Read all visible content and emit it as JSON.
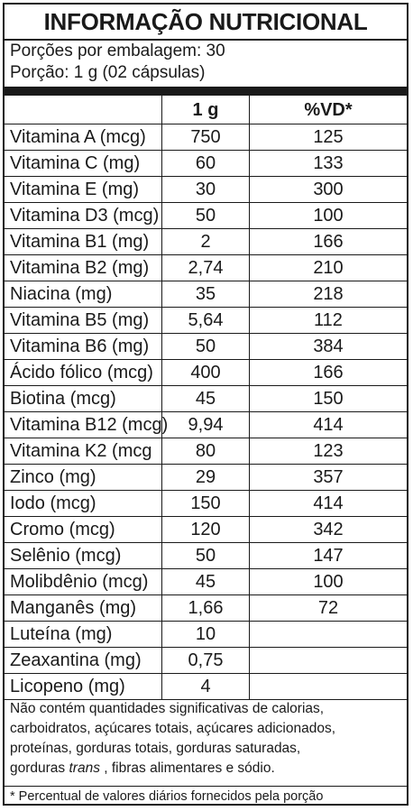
{
  "title": "INFORMAÇÃO NUTRICIONAL",
  "servings_per_package": "Porções por embalagem: 30",
  "serving_size": "Porção: 1 g (02 cápsulas)",
  "headers": {
    "quantity": "1 g",
    "vd": "%VD*"
  },
  "rows": [
    {
      "name": "Vitamina A (mcg)",
      "qty": "750",
      "vd": "125"
    },
    {
      "name": "Vitamina C (mg)",
      "qty": "60",
      "vd": "133"
    },
    {
      "name": "Vitamina E (mg)",
      "qty": "30",
      "vd": "300"
    },
    {
      "name": "Vitamina D3 (mcg)",
      "qty": "50",
      "vd": "100"
    },
    {
      "name": "Vitamina B1 (mg)",
      "qty": "2",
      "vd": "166"
    },
    {
      "name": "Vitamina B2 (mg)",
      "qty": "2,74",
      "vd": "210"
    },
    {
      "name": "Niacina (mg)",
      "qty": "35",
      "vd": "218"
    },
    {
      "name": "Vitamina B5 (mg)",
      "qty": "5,64",
      "vd": "112"
    },
    {
      "name": "Vitamina B6 (mg)",
      "qty": "50",
      "vd": "384"
    },
    {
      "name": "Ácido fólico (mcg)",
      "qty": "400",
      "vd": "166"
    },
    {
      "name": "Biotina (mcg)",
      "qty": "45",
      "vd": "150"
    },
    {
      "name": "Vitamina B12 (mcg)",
      "qty": "9,94",
      "vd": "414"
    },
    {
      "name": "Vitamina K2 (mcg",
      "qty": "80",
      "vd": "123"
    },
    {
      "name": "Zinco (mg)",
      "qty": "29",
      "vd": "357"
    },
    {
      "name": "Iodo (mcg)",
      "qty": "150",
      "vd": "414"
    },
    {
      "name": "Cromo (mcg)",
      "qty": "120",
      "vd": "342"
    },
    {
      "name": "Selênio (mcg)",
      "qty": "50",
      "vd": "147"
    },
    {
      "name": "Molibdênio (mcg)",
      "qty": "45",
      "vd": "100"
    },
    {
      "name": "Manganês (mg)",
      "qty": "1,66",
      "vd": "72"
    },
    {
      "name": "Luteína (mg)",
      "qty": "10",
      "vd": ""
    },
    {
      "name": "Zeaxantina (mg)",
      "qty": "0,75",
      "vd": ""
    },
    {
      "name": "Licopeno (mg)",
      "qty": "4",
      "vd": ""
    }
  ],
  "note": {
    "line1": "Não contém quantidades significativas de calorias,",
    "line2": "carboidratos, açúcares totais, açúcares adicionados,",
    "line3": "proteínas, gorduras totais, gorduras saturadas,",
    "line4_pre": "gorduras ",
    "line4_trans": "trans",
    "line4_post": " , fibras alimentares e sódio."
  },
  "footnote": "* Percentual de valores diários fornecidos pela porção"
}
